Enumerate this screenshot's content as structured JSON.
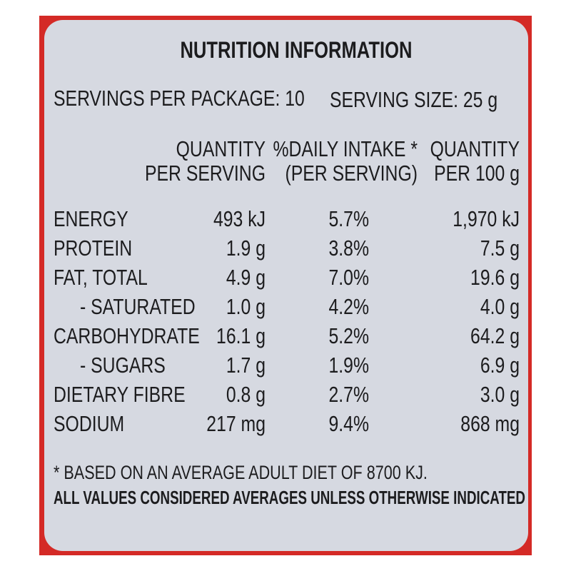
{
  "title": "NUTRITION INFORMATION",
  "servings_per_package": "SERVINGS PER PACKAGE: 10",
  "serving_size": "SERVING SIZE: 25 g",
  "table": {
    "headers": [
      [
        "QUANTITY",
        "PER SERVING"
      ],
      [
        "%DAILY INTAKE *",
        "(PER SERVING)"
      ],
      [
        "QUANTITY",
        "PER 100 g"
      ]
    ],
    "rows": [
      [
        "ENERGY",
        "493 kJ",
        "5.7%",
        "1,970 kJ"
      ],
      [
        "PROTEIN",
        "1.9 g",
        "3.8%",
        "7.5 g"
      ],
      [
        "FAT, TOTAL",
        "4.9 g",
        "7.0%",
        "19.6 g"
      ],
      [
        "- SATURATED",
        "1.0 g",
        "4.2%",
        "4.0 g"
      ],
      [
        "CARBOHYDRATE",
        "16.1 g",
        "5.2%",
        "64.2 g"
      ],
      [
        "- SUGARS",
        "1.7 g",
        "1.9%",
        "6.9 g"
      ],
      [
        "DIETARY FIBRE",
        "0.8 g",
        "2.7%",
        "3.0 g"
      ],
      [
        "SODIUM",
        "217 mg",
        "9.4%",
        "868 mg"
      ]
    ]
  },
  "footnote": "* BASED ON AN AVERAGE ADULT DIET OF 8700 KJ.",
  "note": "ALL VALUES CONSIDERED AVERAGES UNLESS OTHERWISE INDICATED"
}
